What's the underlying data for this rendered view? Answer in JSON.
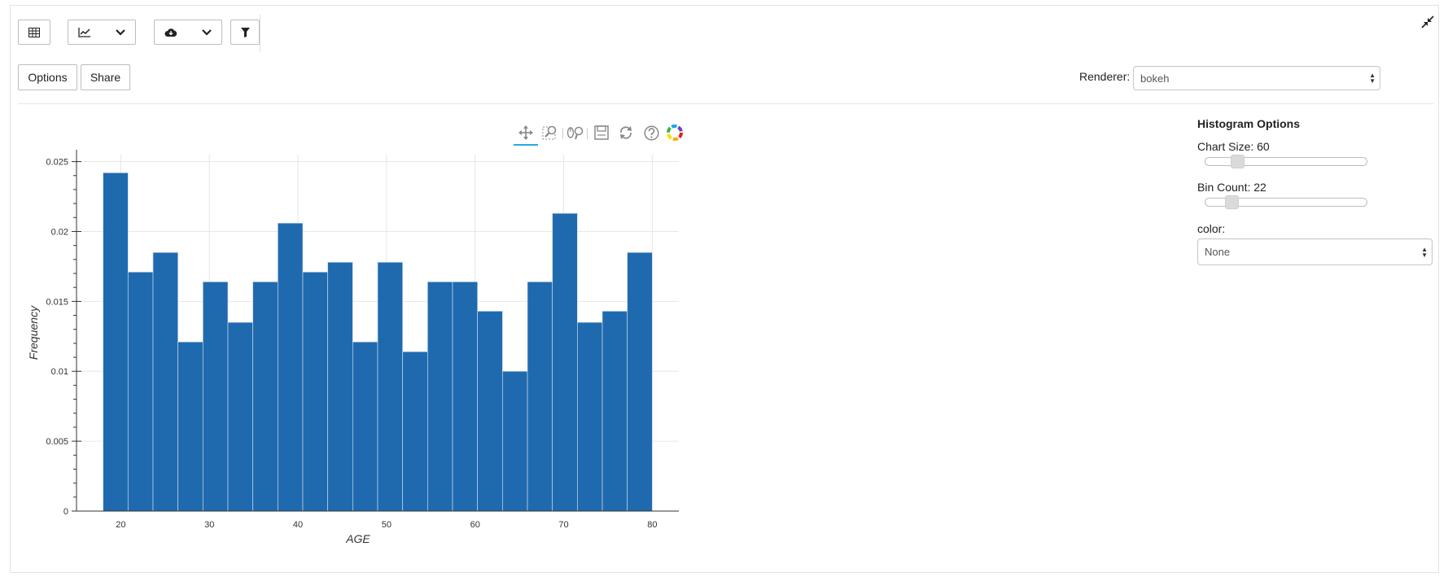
{
  "toolbar": {
    "icons": [
      "table-icon",
      "line-chart-icon",
      "chevron-down-icon",
      "cloud-download-icon",
      "chevron-down-icon",
      "filter-icon"
    ]
  },
  "buttons": {
    "options_label": "Options",
    "share_label": "Share"
  },
  "renderer": {
    "label": "Renderer:",
    "value": "bokeh"
  },
  "histogram_options": {
    "title": "Histogram Options",
    "chart_size_label": "Chart Size: 60",
    "chart_size_value": 60,
    "bin_count_label": "Bin Count: 22",
    "bin_count_value": 22,
    "color_label": "color:",
    "color_value": "None"
  },
  "chart_tools": [
    "pan-icon",
    "box-zoom-icon",
    "wheel-zoom-icon",
    "save-icon",
    "reset-icon",
    "help-icon",
    "bokeh-logo-icon"
  ],
  "colors": {
    "bar": "#1f6aaf",
    "bar_edge": "#c8d8e8",
    "grid": "#e6e6e6",
    "active_tool": "#26aae1"
  },
  "chart_data": {
    "type": "bar",
    "xlabel": "AGE",
    "ylabel": "Frequency",
    "xlim": [
      15,
      83
    ],
    "ylim": [
      0,
      0.0255
    ],
    "xticks": [
      20,
      30,
      40,
      50,
      60,
      70,
      80
    ],
    "yticks": [
      0,
      0.005,
      0.01,
      0.015,
      0.02,
      0.025
    ],
    "ytick_labels": [
      "0",
      "0.005",
      "0.01",
      "0.015",
      "0.02",
      "0.025"
    ],
    "grid": true,
    "bin_start": 18,
    "bin_end": 80,
    "bins": 22,
    "values": [
      0.0242,
      0.0171,
      0.0185,
      0.0121,
      0.0164,
      0.0135,
      0.0164,
      0.0206,
      0.0171,
      0.0178,
      0.0121,
      0.0178,
      0.0114,
      0.0164,
      0.0164,
      0.0143,
      0.01,
      0.0164,
      0.0213,
      0.0135,
      0.0143,
      0.0185
    ]
  }
}
